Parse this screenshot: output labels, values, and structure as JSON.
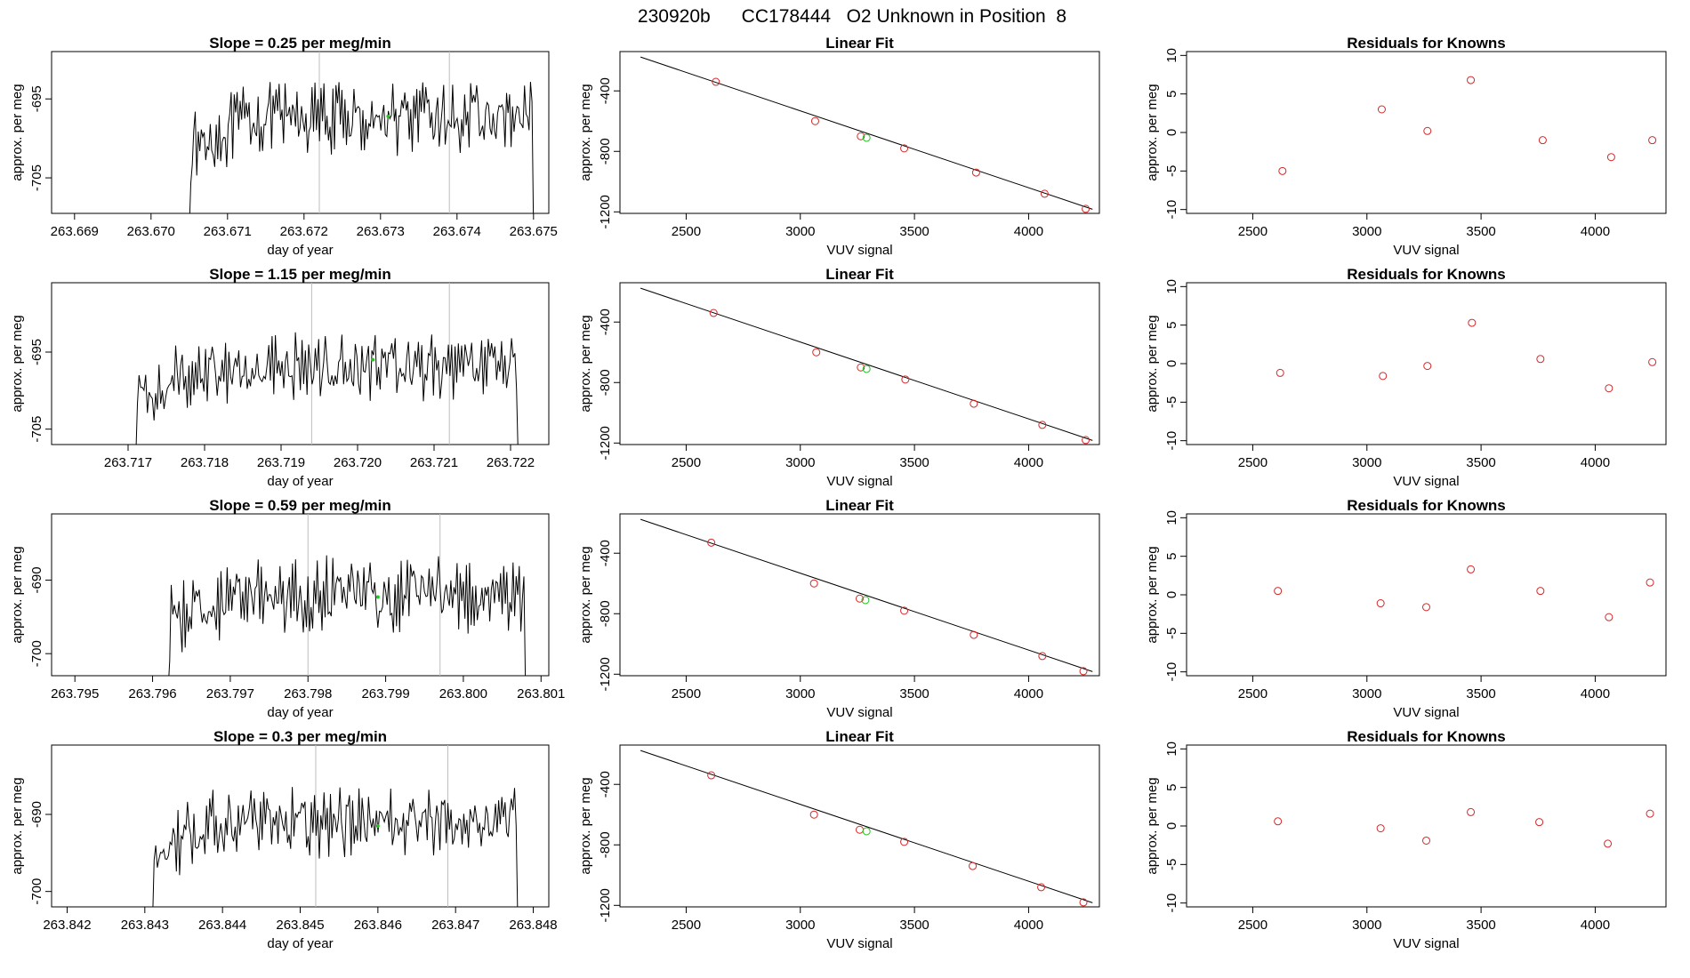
{
  "title": "230920b      CC178444   O2 Unknown in Position  8",
  "colors": {
    "series": "#000000",
    "known": "#d62728",
    "unknown": "#22c322",
    "vline": "#bdbdbd"
  },
  "chart_data": [
    {
      "type": "line",
      "title": "Slope =  0.25  per meg/min",
      "xlabel": "day of year",
      "ylabel": "approx. per meg",
      "xlim": [
        263.6687,
        263.6752
      ],
      "ylim": [
        -709.5,
        -689
      ],
      "xticks": [
        "263.669",
        "263.670",
        "263.671",
        "263.672",
        "263.673",
        "263.674",
        "263.675"
      ],
      "yticks": [
        "-695",
        "-705"
      ],
      "series_x_range": [
        263.6705,
        263.675
      ],
      "series_y_mean": -697.5,
      "series_y_amplitude": 3.5,
      "marker": {
        "x": 263.6731,
        "y": -697.2
      },
      "vlines": [
        263.6722,
        263.6739
      ]
    },
    {
      "type": "scatter",
      "title": "Linear Fit",
      "xlabel": "VUV signal",
      "ylabel": "approx. per meg",
      "xlim": [
        2210,
        4310
      ],
      "ylim": [
        -1210,
        -140
      ],
      "xticks": [
        "2500",
        "3000",
        "3500",
        "4000"
      ],
      "yticks": [
        "-400",
        "-800",
        "-1200"
      ],
      "points": [
        [
          2630,
          -340
        ],
        [
          3065,
          -600
        ],
        [
          3265,
          -700
        ],
        [
          3455,
          -780
        ],
        [
          3770,
          -940
        ],
        [
          4070,
          -1080
        ],
        [
          4250,
          -1180
        ]
      ],
      "unknown": [
        3290,
        -710
      ],
      "fit": [
        [
          2300,
          -176
        ],
        [
          4280,
          -1183
        ]
      ]
    },
    {
      "type": "scatter",
      "title": "Residuals for Knowns",
      "xlabel": "VUV signal",
      "ylabel": "approx. per meg",
      "xlim": [
        2210,
        4310
      ],
      "ylim": [
        -10.5,
        10.5
      ],
      "xticks": [
        "2500",
        "3000",
        "3500",
        "4000"
      ],
      "yticks": [
        "-10",
        "-5",
        "0",
        "5",
        "10"
      ],
      "points": [
        [
          2630,
          -5
        ],
        [
          3065,
          3
        ],
        [
          3265,
          0.2
        ],
        [
          3455,
          6.8
        ],
        [
          3770,
          -1
        ],
        [
          4070,
          -3.2
        ],
        [
          4250,
          -1
        ]
      ]
    },
    {
      "type": "line",
      "title": "Slope =  1.15  per meg/min",
      "xlabel": "day of year",
      "ylabel": "approx. per meg",
      "xlim": [
        263.716,
        263.7225
      ],
      "ylim": [
        -707,
        -686
      ],
      "xticks": [
        "263.717",
        "263.718",
        "263.719",
        "263.720",
        "263.721",
        "263.722"
      ],
      "yticks": [
        "-695",
        "-705"
      ],
      "series_x_range": [
        263.7171,
        263.7221
      ],
      "series_y_mean": -697,
      "series_y_amplitude": 3.5,
      "marker": {
        "x": 263.7202,
        "y": -696
      },
      "vlines": [
        263.7194,
        263.7212
      ]
    },
    {
      "type": "scatter",
      "title": "Linear Fit",
      "xlabel": "VUV signal",
      "ylabel": "approx. per meg",
      "xlim": [
        2210,
        4310
      ],
      "ylim": [
        -1210,
        -140
      ],
      "xticks": [
        "2500",
        "3000",
        "3500",
        "4000"
      ],
      "yticks": [
        "-400",
        "-800",
        "-1200"
      ],
      "points": [
        [
          2620,
          -340
        ],
        [
          3070,
          -600
        ],
        [
          3265,
          -700
        ],
        [
          3460,
          -780
        ],
        [
          3760,
          -940
        ],
        [
          4060,
          -1080
        ],
        [
          4250,
          -1180
        ]
      ],
      "unknown": [
        3290,
        -710
      ],
      "fit": [
        [
          2300,
          -176
        ],
        [
          4280,
          -1183
        ]
      ]
    },
    {
      "type": "scatter",
      "title": "Residuals for Knowns",
      "xlabel": "VUV signal",
      "ylabel": "approx. per meg",
      "xlim": [
        2210,
        4310
      ],
      "ylim": [
        -10.5,
        10.5
      ],
      "xticks": [
        "2500",
        "3000",
        "3500",
        "4000"
      ],
      "yticks": [
        "-10",
        "-5",
        "0",
        "5",
        "10"
      ],
      "points": [
        [
          2620,
          -1.2
        ],
        [
          3070,
          -1.6
        ],
        [
          3265,
          -0.3
        ],
        [
          3460,
          5.3
        ],
        [
          3760,
          0.6
        ],
        [
          4060,
          -3.2
        ],
        [
          4250,
          0.2
        ]
      ]
    },
    {
      "type": "line",
      "title": "Slope =  0.59  per meg/min",
      "xlabel": "day of year",
      "ylabel": "approx. per meg",
      "xlim": [
        263.7947,
        263.8011
      ],
      "ylim": [
        -703,
        -681
      ],
      "xticks": [
        "263.795",
        "263.796",
        "263.797",
        "263.798",
        "263.799",
        "263.800",
        "263.801"
      ],
      "yticks": [
        "-690",
        "-700"
      ],
      "series_x_range": [
        263.7962,
        263.8008
      ],
      "series_y_mean": -692,
      "series_y_amplitude": 4,
      "marker": {
        "x": 263.7989,
        "y": -692.3
      },
      "vlines": [
        263.798,
        263.7997
      ]
    },
    {
      "type": "scatter",
      "title": "Linear Fit",
      "xlabel": "VUV signal",
      "ylabel": "approx. per meg",
      "xlim": [
        2210,
        4310
      ],
      "ylim": [
        -1210,
        -140
      ],
      "xticks": [
        "2500",
        "3000",
        "3500",
        "4000"
      ],
      "yticks": [
        "-400",
        "-800",
        "-1200"
      ],
      "points": [
        [
          2610,
          -330
        ],
        [
          3060,
          -600
        ],
        [
          3260,
          -700
        ],
        [
          3455,
          -780
        ],
        [
          3760,
          -940
        ],
        [
          4060,
          -1080
        ],
        [
          4240,
          -1180
        ]
      ],
      "unknown": [
        3285,
        -710
      ],
      "fit": [
        [
          2300,
          -176
        ],
        [
          4280,
          -1183
        ]
      ]
    },
    {
      "type": "scatter",
      "title": "Residuals for Knowns",
      "xlabel": "VUV signal",
      "ylabel": "approx. per meg",
      "xlim": [
        2210,
        4310
      ],
      "ylim": [
        -10.5,
        10.5
      ],
      "xticks": [
        "2500",
        "3000",
        "3500",
        "4000"
      ],
      "yticks": [
        "-10",
        "-5",
        "0",
        "5",
        "10"
      ],
      "points": [
        [
          2610,
          0.5
        ],
        [
          3060,
          -1.1
        ],
        [
          3260,
          -1.6
        ],
        [
          3455,
          3.3
        ],
        [
          3760,
          0.5
        ],
        [
          4060,
          -2.9
        ],
        [
          4240,
          1.6
        ]
      ]
    },
    {
      "type": "line",
      "title": "Slope =  0.3  per meg/min",
      "xlabel": "day of year",
      "ylabel": "approx. per meg",
      "xlim": [
        263.8418,
        263.8482
      ],
      "ylim": [
        -702,
        -681
      ],
      "xticks": [
        "263.842",
        "263.843",
        "263.844",
        "263.845",
        "263.846",
        "263.847",
        "263.848"
      ],
      "yticks": [
        "-690",
        "-700"
      ],
      "series_x_range": [
        263.8431,
        263.8478
      ],
      "series_y_mean": -691,
      "series_y_amplitude": 3.5,
      "marker": {
        "x": 263.846,
        "y": -691.5
      },
      "vlines": [
        263.8452,
        263.8469
      ]
    },
    {
      "type": "scatter",
      "title": "Linear Fit",
      "xlabel": "VUV signal",
      "ylabel": "approx. per meg",
      "xlim": [
        2210,
        4310
      ],
      "ylim": [
        -1210,
        -140
      ],
      "xticks": [
        "2500",
        "3000",
        "3500",
        "4000"
      ],
      "yticks": [
        "-400",
        "-800",
        "-1200"
      ],
      "points": [
        [
          2610,
          -340
        ],
        [
          3060,
          -600
        ],
        [
          3260,
          -700
        ],
        [
          3455,
          -780
        ],
        [
          3755,
          -940
        ],
        [
          4055,
          -1080
        ],
        [
          4240,
          -1180
        ]
      ],
      "unknown": [
        3290,
        -710
      ],
      "fit": [
        [
          2300,
          -176
        ],
        [
          4280,
          -1183
        ]
      ]
    },
    {
      "type": "scatter",
      "title": "Residuals for Knowns",
      "xlabel": "VUV signal",
      "ylabel": "approx. per meg",
      "xlim": [
        2210,
        4310
      ],
      "ylim": [
        -10.5,
        10.5
      ],
      "xticks": [
        "2500",
        "3000",
        "3500",
        "4000"
      ],
      "yticks": [
        "-10",
        "-5",
        "0",
        "5",
        "10"
      ],
      "points": [
        [
          2610,
          0.6
        ],
        [
          3060,
          -0.3
        ],
        [
          3260,
          -1.9
        ],
        [
          3455,
          1.8
        ],
        [
          3755,
          0.5
        ],
        [
          4055,
          -2.3
        ],
        [
          4240,
          1.6
        ]
      ]
    }
  ]
}
